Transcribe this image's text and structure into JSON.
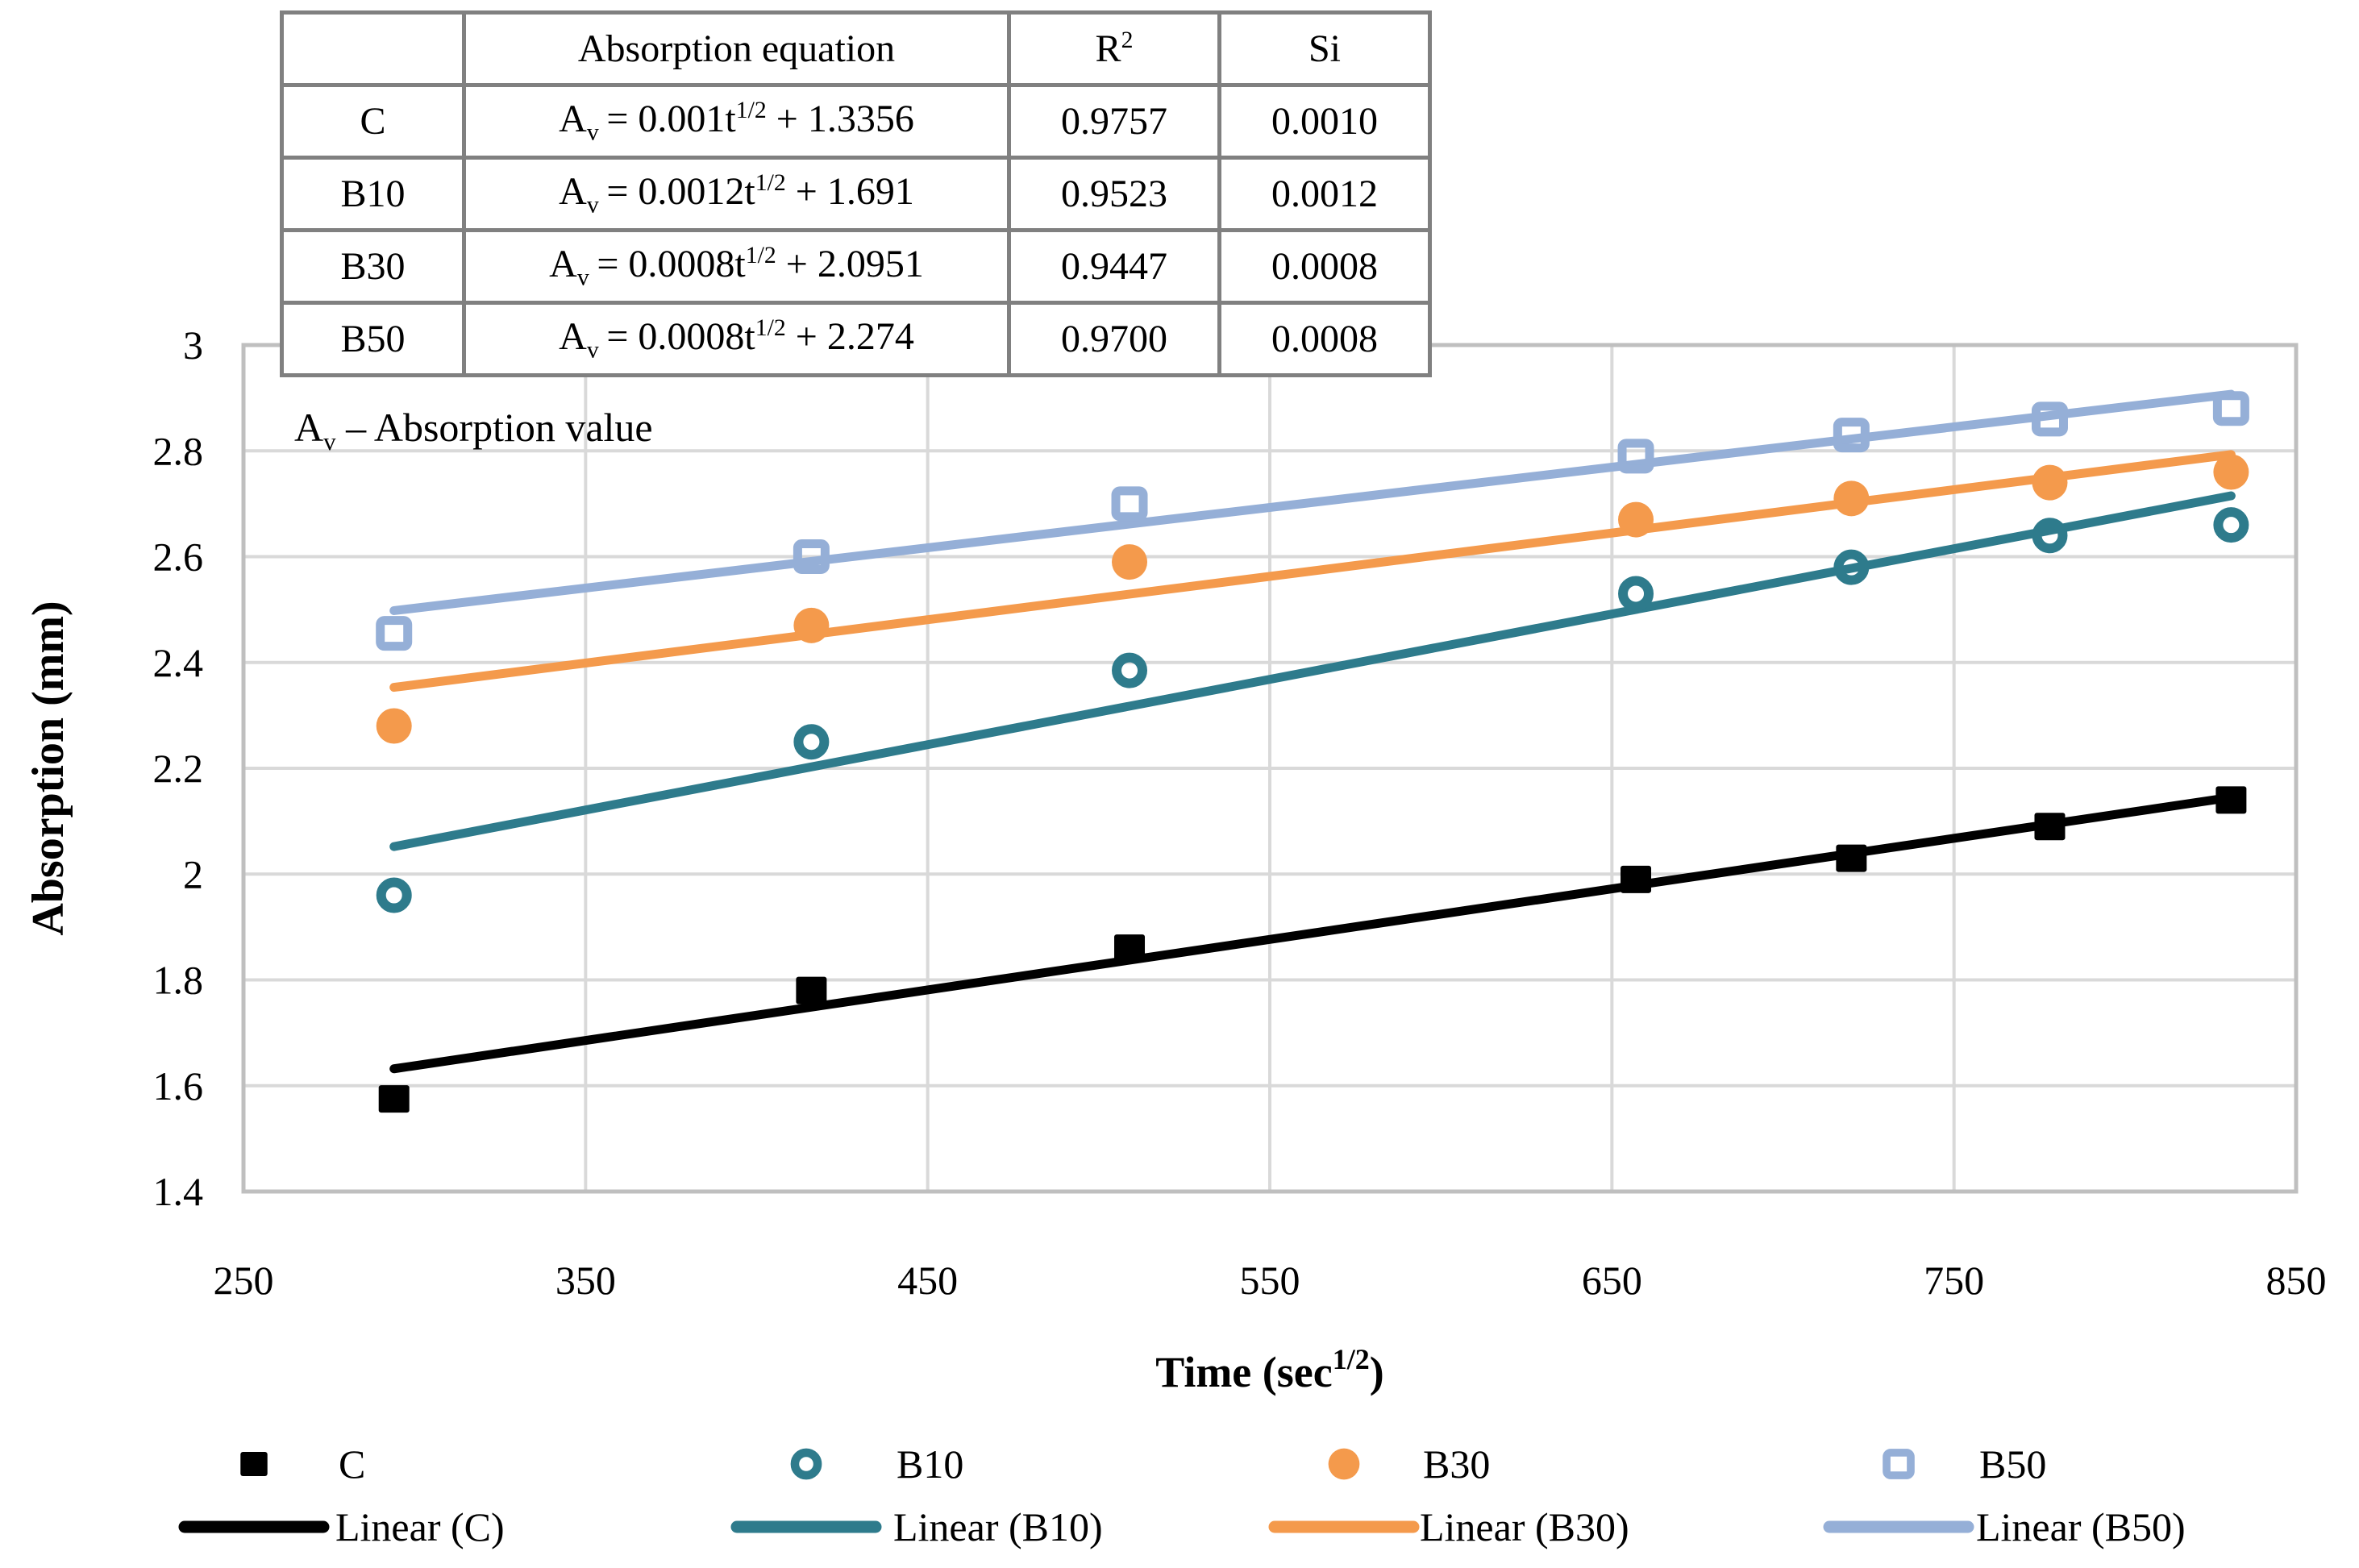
{
  "table": {
    "header_empty": "",
    "header_equation": "Absorption equation",
    "header_r2_base": "R",
    "header_r2_sup": "2",
    "header_si": "Si",
    "eq_symbol": "A",
    "eq_symbol_sub": "v",
    "eq_equals": "=",
    "eq_t": "t",
    "eq_power": "1/2",
    "eq_plus": "+",
    "rows": [
      {
        "label": "C",
        "coef": "0.001",
        "intercept": "1.3356",
        "r2": "0.9757",
        "si": "0.0010"
      },
      {
        "label": "B10",
        "coef": "0.0012",
        "intercept": "1.691",
        "r2": "0.9523",
        "si": "0.0012"
      },
      {
        "label": "B30",
        "coef": "0.0008",
        "intercept": "2.0951",
        "r2": "0.9447",
        "si": "0.0008"
      },
      {
        "label": "B50",
        "coef": "0.0008",
        "intercept": "2.274",
        "r2": "0.9700",
        "si": "0.0008"
      }
    ]
  },
  "note": {
    "symbol": "A",
    "sub": "v",
    "rest": "– Absorption value"
  },
  "chart_data": {
    "type": "scatter",
    "xlabel_pre": "Time (sec",
    "xlabel_sup": "1/2",
    "xlabel_post": ")",
    "ylabel": "Absorption (mm)",
    "xlim": [
      250,
      850
    ],
    "ylim": [
      1.4,
      3.0
    ],
    "x_tick_labels": [
      "250",
      "350",
      "450",
      "550",
      "650",
      "750",
      "850"
    ],
    "x_tick_values": [
      250,
      350,
      450,
      550,
      650,
      750,
      850
    ],
    "y_tick_labels": [
      "3",
      "2.8",
      "2.6",
      "2.4",
      "2.2",
      "2",
      "1.8",
      "1.6",
      "1.4"
    ],
    "y_tick_values": [
      3.0,
      2.8,
      2.6,
      2.4,
      2.2,
      2.0,
      1.8,
      1.6,
      1.4
    ],
    "grid": true,
    "x": [
      294,
      416,
      509,
      657,
      720,
      778,
      831
    ],
    "series": [
      {
        "name": "C",
        "color": "#000000",
        "marker": "filled-square",
        "values": [
          1.575,
          1.78,
          1.86,
          1.99,
          2.03,
          2.09,
          2.14
        ],
        "trend": {
          "x1": 294,
          "y1": 1.632,
          "x2": 831,
          "y2": 2.145
        }
      },
      {
        "name": "B10",
        "color": "#2E7B8C",
        "marker": "open-circle",
        "values": [
          1.96,
          2.25,
          2.385,
          2.53,
          2.58,
          2.64,
          2.66
        ],
        "trend": {
          "x1": 294,
          "y1": 2.052,
          "x2": 831,
          "y2": 2.715
        }
      },
      {
        "name": "B30",
        "color": "#F49A4C",
        "marker": "filled-circle",
        "values": [
          2.28,
          2.47,
          2.59,
          2.67,
          2.71,
          2.74,
          2.76
        ],
        "trend": {
          "x1": 294,
          "y1": 2.353,
          "x2": 831,
          "y2": 2.793
        }
      },
      {
        "name": "B50",
        "color": "#95AFD7",
        "marker": "open-square",
        "values": [
          2.455,
          2.6,
          2.7,
          2.79,
          2.83,
          2.86,
          2.88
        ],
        "trend": {
          "x1": 294,
          "y1": 2.498,
          "x2": 831,
          "y2": 2.907
        }
      }
    ],
    "legend": {
      "position": "bottom",
      "marker_entries": [
        "C",
        "B10",
        "B30",
        "B50"
      ],
      "line_entries": [
        "Linear (C)",
        "Linear (B10)",
        "Linear (B30)",
        "Linear (B50)"
      ]
    },
    "colors": {
      "grid": "#D9D9D9",
      "frame": "#BFBFBF",
      "table_border": "#808080",
      "text": "#000000"
    }
  }
}
